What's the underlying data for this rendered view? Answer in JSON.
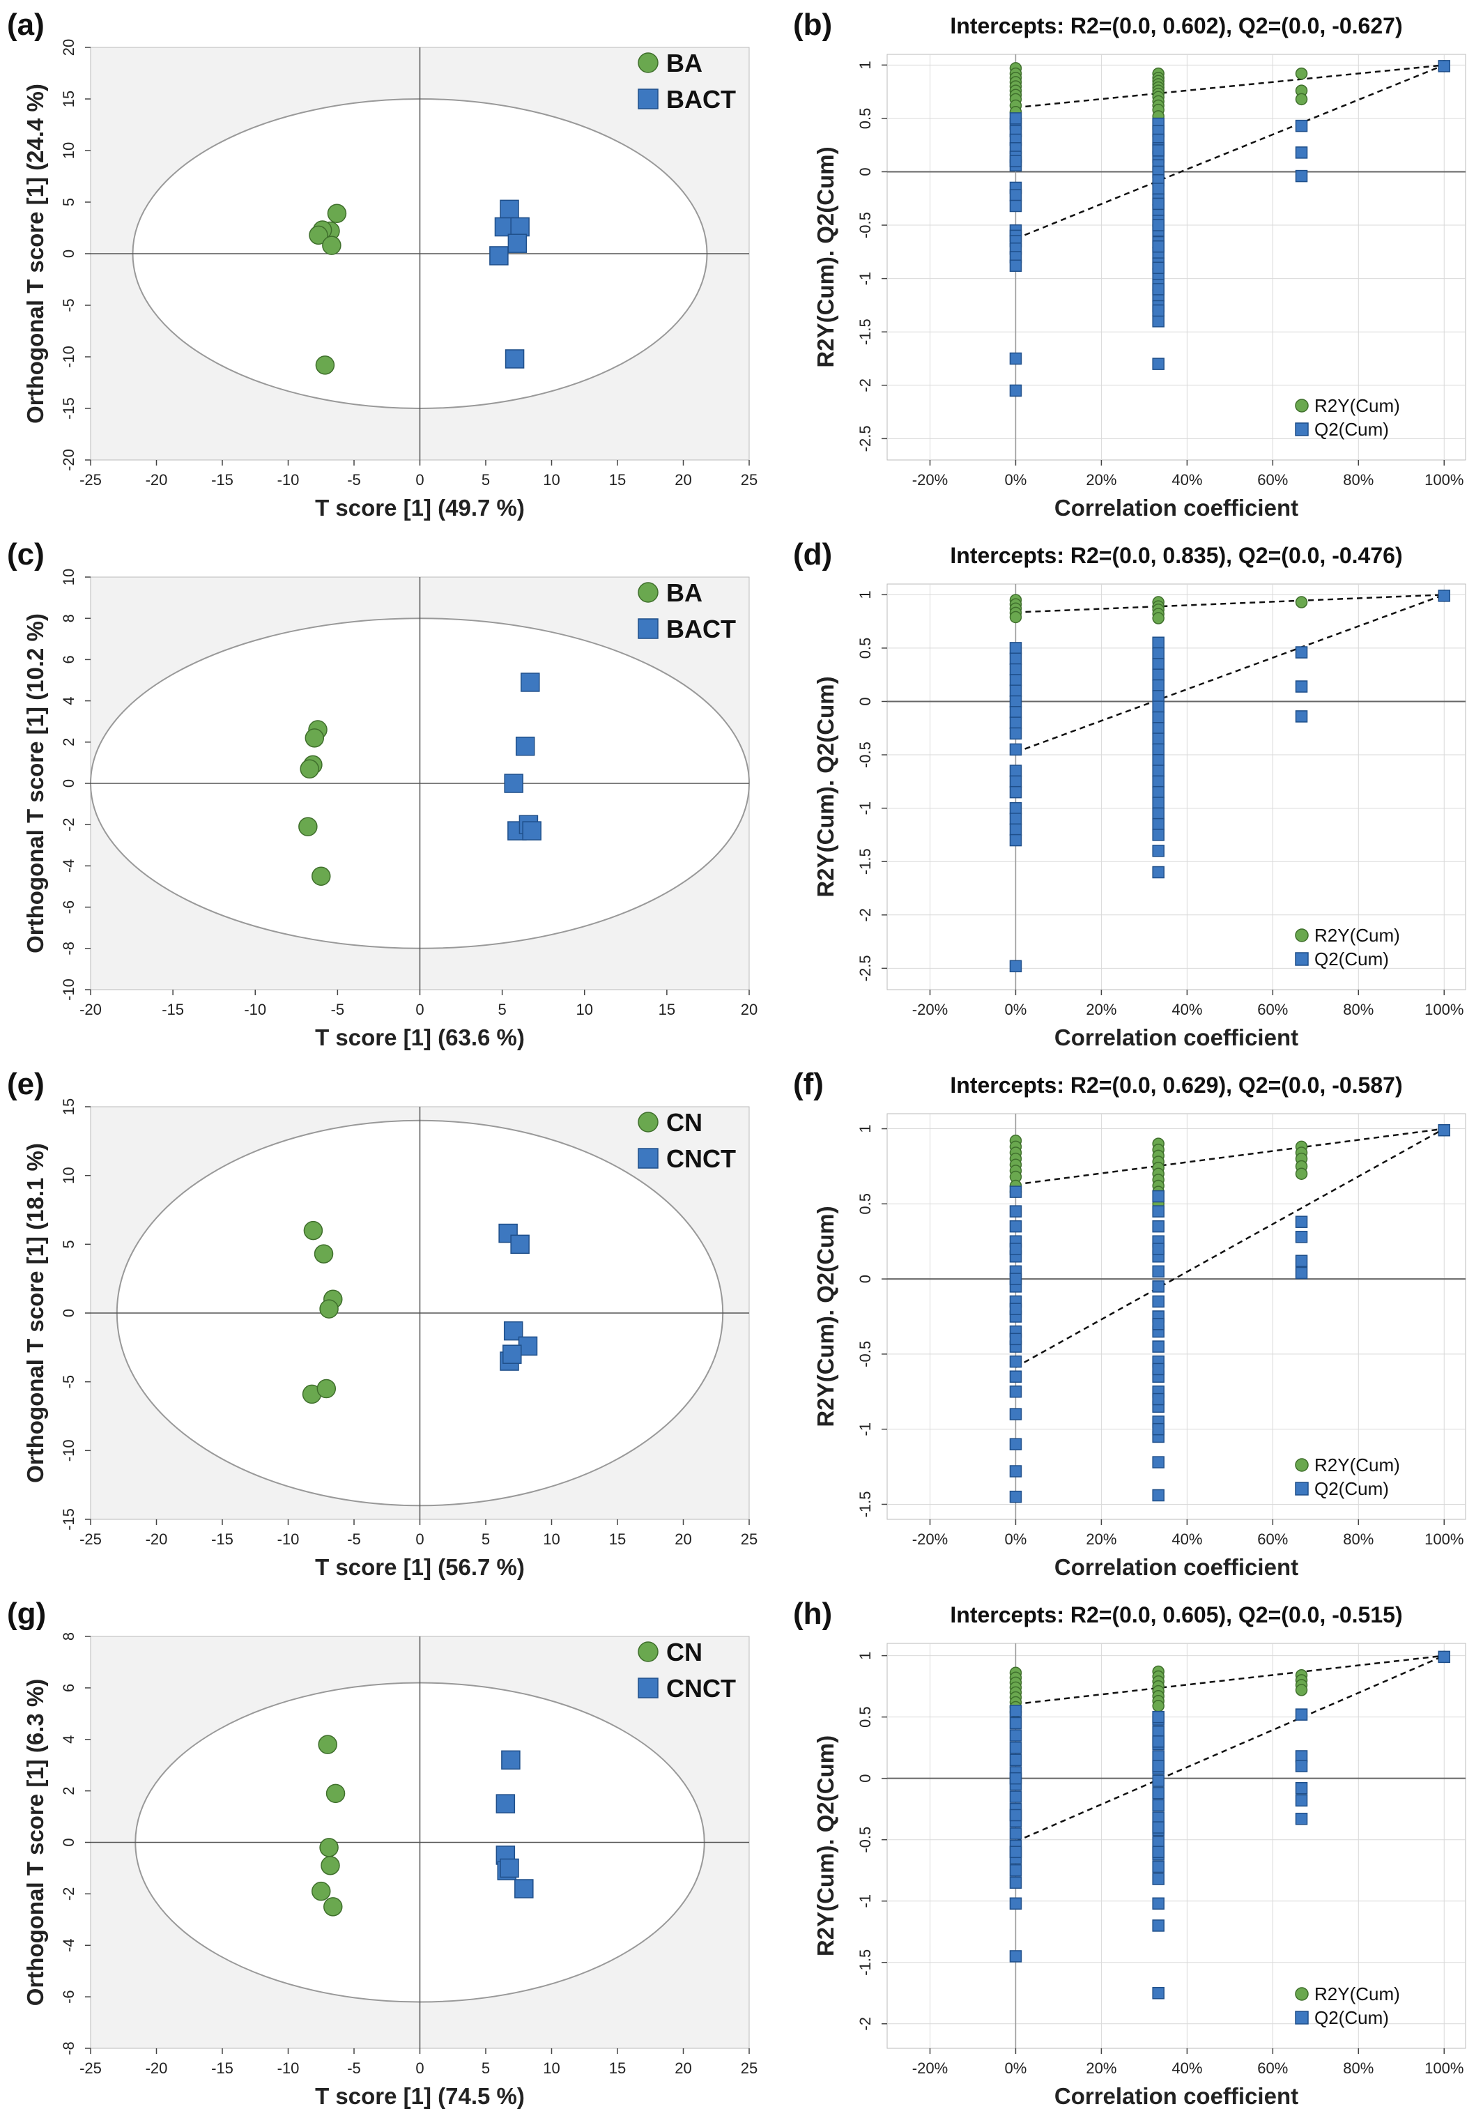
{
  "colors": {
    "green": "#6aa84f",
    "green_edge": "#3f6f2c",
    "blue": "#3d78c0",
    "blue_edge": "#1f4f8a",
    "shade": "#f2f2f2",
    "grid": "#d9d9d9",
    "line": "#888888"
  },
  "chart_data": [
    {
      "panel": "(a)",
      "type": "scatter",
      "title": "",
      "xlabel": "T score [1] (49.7 %)",
      "ylabel": "Orthogonal T score [1] (24.4 %)",
      "xlim": [
        -25,
        25
      ],
      "ylim": [
        -20,
        20
      ],
      "xticks": [
        "-25",
        "-20",
        "-15",
        "-10",
        "-5",
        "0",
        "5",
        "10",
        "15",
        "20",
        "25"
      ],
      "yticks": [
        "20",
        "15",
        "10",
        "5",
        "0",
        "-5",
        "-10",
        "-15",
        "-20"
      ],
      "ellipse": {
        "rx": 21.8,
        "ry": 15
      },
      "series": [
        {
          "name": "BA",
          "marker": "circle",
          "x": [
            -6.3,
            -6.8,
            -7.4,
            -7.7,
            -6.7,
            -7.2
          ],
          "y": [
            3.9,
            2.2,
            2.3,
            1.8,
            0.8,
            -10.8
          ]
        },
        {
          "name": "BACT",
          "marker": "square",
          "x": [
            6.8,
            6.4,
            7.6,
            7.4,
            6.0,
            7.2
          ],
          "y": [
            4.3,
            2.6,
            2.6,
            1.0,
            -0.2,
            -10.2
          ]
        }
      ]
    },
    {
      "panel": "(b)",
      "type": "scatter",
      "title": "Intercepts: R2=(0.0, 0.602), Q2=(0.0, -0.627)",
      "xlabel": "Correlation coefficient",
      "ylabel": "R2Y(Cum). Q2(Cum)",
      "xlim": [
        -0.3,
        1.05
      ],
      "ylim": [
        -2.7,
        1.1
      ],
      "xticks": [
        "-20%",
        "0%",
        "20%",
        "40%",
        "60%",
        "80%",
        "100%"
      ],
      "yticks": [
        "1",
        "0.5",
        "0",
        "-0.5",
        "-1",
        "-1.5",
        "-2",
        "-2.5"
      ],
      "r2_line": [
        0.602,
        1.0
      ],
      "q2_line": [
        -0.627,
        1.0
      ],
      "series": [
        {
          "name": "R2Y(Cum)",
          "marker": "circle",
          "x": [
            0,
            0,
            0,
            0,
            0,
            0,
            0,
            0,
            0,
            0,
            0.333,
            0.333,
            0.333,
            0.333,
            0.333,
            0.333,
            0.333,
            0.333,
            0.333,
            0.333,
            0.333,
            0.333,
            0.667,
            0.667,
            0.667,
            1.0
          ],
          "y": [
            0.97,
            0.92,
            0.88,
            0.84,
            0.8,
            0.76,
            0.72,
            0.68,
            0.62,
            0.56,
            0.92,
            0.88,
            0.85,
            0.82,
            0.79,
            0.76,
            0.73,
            0.7,
            0.66,
            0.62,
            0.58,
            0.52,
            0.92,
            0.76,
            0.68,
            0.99
          ]
        },
        {
          "name": "Q2(Cum)",
          "marker": "square",
          "x": [
            0,
            0,
            0,
            0,
            0,
            0,
            0,
            0,
            0,
            0,
            0,
            0,
            0,
            0,
            0,
            0,
            0,
            0,
            0,
            0.333,
            0.333,
            0.333,
            0.333,
            0.333,
            0.333,
            0.333,
            0.333,
            0.333,
            0.333,
            0.333,
            0.333,
            0.333,
            0.333,
            0.333,
            0.333,
            0.333,
            0.333,
            0.333,
            0.333,
            0.333,
            0.333,
            0.333,
            0.333,
            0.333,
            0.333,
            0.333,
            0.333,
            0.333,
            0.667,
            0.667,
            0.667,
            1.0
          ],
          "y": [
            0.45,
            0.38,
            0.3,
            0.22,
            0.14,
            0.06,
            -0.15,
            -0.22,
            -0.32,
            -0.55,
            -0.6,
            -0.65,
            -0.72,
            -0.8,
            -0.88,
            -1.75,
            -2.05,
            0.5,
            0.1,
            0.45,
            0.38,
            0.3,
            0.22,
            0.14,
            0.06,
            0.0,
            -0.08,
            -0.16,
            -0.26,
            -0.36,
            -0.46,
            -0.55,
            -0.66,
            -0.76,
            -0.86,
            -0.96,
            -1.06,
            -1.16,
            -1.26,
            -1.4,
            -1.8,
            0.2,
            -0.3,
            -0.5,
            -0.7,
            -0.9,
            -1.1,
            -1.3,
            0.43,
            0.18,
            -0.04,
            0.99
          ]
        }
      ]
    },
    {
      "panel": "(c)",
      "type": "scatter",
      "title": "",
      "xlabel": "T score [1] (63.6 %)",
      "ylabel": "Orthogonal T score [1] (10.2 %)",
      "xlim": [
        -20,
        20
      ],
      "ylim": [
        -10,
        10
      ],
      "xticks": [
        "-20",
        "-15",
        "-10",
        "-5",
        "0",
        "5",
        "10",
        "15",
        "20"
      ],
      "yticks": [
        "10",
        "8",
        "6",
        "4",
        "2",
        "0",
        "-2",
        "-4",
        "-6",
        "-8",
        "-10"
      ],
      "ellipse": {
        "rx": 20,
        "ry": 8
      },
      "series": [
        {
          "name": "BA",
          "marker": "circle",
          "x": [
            -6.2,
            -6.4,
            -6.5,
            -6.7,
            -6.8,
            -6.0
          ],
          "y": [
            2.6,
            2.2,
            0.9,
            0.7,
            -2.1,
            -4.5
          ]
        },
        {
          "name": "BACT",
          "marker": "square",
          "x": [
            6.7,
            6.4,
            5.7,
            5.9,
            6.6,
            6.8
          ],
          "y": [
            4.9,
            1.8,
            0.0,
            -2.3,
            -2.0,
            -2.3
          ]
        }
      ]
    },
    {
      "panel": "(d)",
      "type": "scatter",
      "title": "Intercepts: R2=(0.0, 0.835), Q2=(0.0, -0.476)",
      "xlabel": "Correlation coefficient",
      "ylabel": "R2Y(Cum). Q2(Cum)",
      "xlim": [
        -0.3,
        1.05
      ],
      "ylim": [
        -2.7,
        1.1
      ],
      "xticks": [
        "-20%",
        "0%",
        "20%",
        "40%",
        "60%",
        "80%",
        "100%"
      ],
      "yticks": [
        "1",
        "0.5",
        "0",
        "-0.5",
        "-1",
        "-1.5",
        "-2",
        "-2.5"
      ],
      "r2_line": [
        0.835,
        1.0
      ],
      "q2_line": [
        -0.476,
        1.0
      ],
      "series": [
        {
          "name": "R2Y(Cum)",
          "marker": "circle",
          "x": [
            0,
            0,
            0,
            0,
            0,
            0.333,
            0.333,
            0.333,
            0.333,
            0.333,
            0.667,
            1.0
          ],
          "y": [
            0.95,
            0.91,
            0.87,
            0.83,
            0.79,
            0.93,
            0.89,
            0.86,
            0.82,
            0.78,
            0.93,
            0.99
          ]
        },
        {
          "name": "Q2(Cum)",
          "marker": "square",
          "x": [
            0,
            0,
            0,
            0,
            0,
            0,
            0,
            0,
            0,
            0,
            0,
            0,
            0,
            0,
            0,
            0,
            0,
            0,
            0.333,
            0.333,
            0.333,
            0.333,
            0.333,
            0.333,
            0.333,
            0.333,
            0.333,
            0.333,
            0.333,
            0.333,
            0.333,
            0.333,
            0.333,
            0.333,
            0.333,
            0.333,
            0.333,
            0.333,
            0.333,
            0.667,
            0.667,
            0.667,
            1.0
          ],
          "y": [
            0.5,
            0.4,
            0.3,
            0.2,
            0.1,
            0.0,
            -0.1,
            -0.2,
            -0.3,
            -0.45,
            -0.65,
            -0.75,
            -0.85,
            -1.0,
            -1.1,
            -1.2,
            -1.3,
            -2.48,
            0.55,
            0.45,
            0.35,
            0.25,
            0.15,
            0.05,
            -0.05,
            -0.15,
            -0.25,
            -0.35,
            -0.45,
            -0.55,
            -0.65,
            -0.75,
            -0.85,
            -0.95,
            -1.05,
            -1.15,
            -1.25,
            -1.6,
            -1.4,
            0.46,
            0.14,
            -0.14,
            0.99
          ]
        }
      ]
    },
    {
      "panel": "(e)",
      "type": "scatter",
      "title": "",
      "xlabel": "T score [1] (56.7 %)",
      "ylabel": "Orthogonal T score [1] (18.1 %)",
      "xlim": [
        -25,
        25
      ],
      "ylim": [
        -15,
        15
      ],
      "xticks": [
        "-25",
        "-20",
        "-15",
        "-10",
        "-5",
        "0",
        "5",
        "10",
        "15",
        "20",
        "25"
      ],
      "yticks": [
        "15",
        "10",
        "5",
        "0",
        "-5",
        "-10",
        "-15"
      ],
      "ellipse": {
        "rx": 23,
        "ry": 14
      },
      "series": [
        {
          "name": "CN",
          "marker": "circle",
          "x": [
            -8.1,
            -7.3,
            -6.6,
            -6.9,
            -8.2,
            -7.1
          ],
          "y": [
            6.0,
            4.3,
            1.0,
            0.3,
            -5.9,
            -5.5
          ]
        },
        {
          "name": "CNCT",
          "marker": "square",
          "x": [
            6.7,
            7.6,
            7.1,
            8.2,
            6.8,
            7.0
          ],
          "y": [
            5.8,
            5.0,
            -1.3,
            -2.4,
            -3.5,
            -3.0
          ]
        }
      ]
    },
    {
      "panel": "(f)",
      "type": "scatter",
      "title": "Intercepts: R2=(0.0, 0.629), Q2=(0.0, -0.587)",
      "xlabel": "Correlation coefficient",
      "ylabel": "R2Y(Cum). Q2(Cum)",
      "xlim": [
        -0.3,
        1.05
      ],
      "ylim": [
        -1.6,
        1.1
      ],
      "xticks": [
        "-20%",
        "0%",
        "20%",
        "40%",
        "60%",
        "80%",
        "100%"
      ],
      "yticks": [
        "1",
        "0.5",
        "0",
        "-0.5",
        "-1",
        "-1.5"
      ],
      "r2_line": [
        0.629,
        1.0
      ],
      "q2_line": [
        -0.587,
        1.0
      ],
      "series": [
        {
          "name": "R2Y(Cum)",
          "marker": "circle",
          "x": [
            0,
            0,
            0,
            0,
            0,
            0,
            0,
            0,
            0,
            0.333,
            0.333,
            0.333,
            0.333,
            0.333,
            0.333,
            0.333,
            0.333,
            0.333,
            0.333,
            0.667,
            0.667,
            0.667,
            0.667,
            0.667,
            1.0
          ],
          "y": [
            0.92,
            0.88,
            0.84,
            0.8,
            0.76,
            0.72,
            0.68,
            0.62,
            0.58,
            0.9,
            0.86,
            0.82,
            0.78,
            0.74,
            0.7,
            0.66,
            0.62,
            0.58,
            0.5,
            0.88,
            0.84,
            0.8,
            0.75,
            0.7,
            0.99
          ]
        },
        {
          "name": "Q2(Cum)",
          "marker": "square",
          "x": [
            0,
            0,
            0,
            0,
            0,
            0,
            0,
            0,
            0,
            0,
            0,
            0,
            0,
            0,
            0,
            0,
            0,
            0,
            0,
            0,
            0,
            0,
            0.333,
            0.333,
            0.333,
            0.333,
            0.333,
            0.333,
            0.333,
            0.333,
            0.333,
            0.333,
            0.333,
            0.333,
            0.333,
            0.333,
            0.333,
            0.333,
            0.333,
            0.333,
            0.333,
            0.333,
            0.333,
            0.333,
            0.333,
            0.333,
            0.667,
            0.667,
            0.667,
            0.667,
            1.0
          ],
          "y": [
            0.45,
            0.35,
            0.25,
            0.15,
            0.05,
            -0.05,
            -0.15,
            -0.25,
            -0.35,
            -0.45,
            -0.55,
            -0.65,
            -0.75,
            -0.9,
            -1.1,
            -1.28,
            -1.45,
            0.58,
            0.2,
            0.0,
            -0.2,
            -0.4,
            0.55,
            0.45,
            0.35,
            0.25,
            0.15,
            0.05,
            -0.05,
            -0.15,
            -0.25,
            -0.35,
            -0.45,
            -0.55,
            -0.65,
            -0.75,
            -0.85,
            -0.95,
            -1.05,
            -1.22,
            -1.44,
            0.2,
            -0.3,
            -0.6,
            -0.8,
            -1.0,
            0.38,
            0.28,
            0.12,
            0.04,
            0.99
          ]
        }
      ]
    },
    {
      "panel": "(g)",
      "type": "scatter",
      "title": "",
      "xlabel": "T score [1] (74.5 %)",
      "ylabel": "Orthogonal T score [1] (6.3 %)",
      "xlim": [
        -25,
        25
      ],
      "ylim": [
        -8,
        8
      ],
      "xticks": [
        "-25",
        "-20",
        "-15",
        "-10",
        "-5",
        "0",
        "5",
        "10",
        "15",
        "20",
        "25"
      ],
      "yticks": [
        "8",
        "6",
        "4",
        "2",
        "0",
        "-2",
        "-4",
        "-6",
        "-8"
      ],
      "ellipse": {
        "rx": 21.6,
        "ry": 6.2
      },
      "series": [
        {
          "name": "CN",
          "marker": "circle",
          "x": [
            -7.0,
            -6.4,
            -6.9,
            -6.8,
            -7.5,
            -6.6
          ],
          "y": [
            3.8,
            1.9,
            -0.2,
            -0.9,
            -1.9,
            -2.5
          ]
        },
        {
          "name": "CNCT",
          "marker": "square",
          "x": [
            6.9,
            6.5,
            6.5,
            6.6,
            7.9,
            6.8
          ],
          "y": [
            3.2,
            1.5,
            -0.5,
            -1.1,
            -1.8,
            -1.0
          ]
        }
      ]
    },
    {
      "panel": "(h)",
      "type": "scatter",
      "title": "Intercepts: R2=(0.0, 0.605), Q2=(0.0, -0.515)",
      "xlabel": "Correlation coefficient",
      "ylabel": "R2Y(Cum). Q2(Cum)",
      "xlim": [
        -0.3,
        1.05
      ],
      "ylim": [
        -2.2,
        1.1
      ],
      "xticks": [
        "-20%",
        "0%",
        "20%",
        "40%",
        "60%",
        "80%",
        "100%"
      ],
      "yticks": [
        "1",
        "0.5",
        "0",
        "-0.5",
        "-1",
        "-1.5",
        "-2"
      ],
      "r2_line": [
        0.605,
        1.0
      ],
      "q2_line": [
        -0.515,
        1.0
      ],
      "series": [
        {
          "name": "R2Y(Cum)",
          "marker": "circle",
          "x": [
            0,
            0,
            0,
            0,
            0,
            0,
            0,
            0,
            0,
            0.333,
            0.333,
            0.333,
            0.333,
            0.333,
            0.333,
            0.333,
            0.333,
            0.667,
            0.667,
            0.667,
            0.667,
            1.0
          ],
          "y": [
            0.86,
            0.82,
            0.78,
            0.74,
            0.7,
            0.66,
            0.62,
            0.58,
            0.54,
            0.87,
            0.83,
            0.79,
            0.75,
            0.71,
            0.67,
            0.63,
            0.59,
            0.84,
            0.8,
            0.76,
            0.72,
            0.99
          ]
        },
        {
          "name": "Q2(Cum)",
          "marker": "square",
          "x": [
            0,
            0,
            0,
            0,
            0,
            0,
            0,
            0,
            0,
            0,
            0,
            0,
            0,
            0,
            0,
            0,
            0,
            0,
            0,
            0,
            0.333,
            0.333,
            0.333,
            0.333,
            0.333,
            0.333,
            0.333,
            0.333,
            0.333,
            0.333,
            0.333,
            0.333,
            0.333,
            0.333,
            0.333,
            0.333,
            0.333,
            0.333,
            0.333,
            0.333,
            0.333,
            0.333,
            0.667,
            0.667,
            0.667,
            0.667,
            0.667,
            0.667,
            1.0
          ],
          "y": [
            0.45,
            0.35,
            0.25,
            0.15,
            0.05,
            -0.05,
            -0.15,
            -0.25,
            -0.35,
            -0.45,
            -0.55,
            -0.65,
            -0.75,
            -0.85,
            -1.02,
            -1.45,
            0.0,
            -0.3,
            -0.6,
            0.55,
            0.48,
            0.38,
            0.28,
            0.18,
            0.08,
            -0.02,
            -0.12,
            -0.22,
            -0.32,
            -0.42,
            -0.52,
            -0.62,
            -0.72,
            -0.82,
            -1.02,
            -1.2,
            -1.75,
            0.1,
            -0.4,
            -0.6,
            0.3,
            0.5,
            0.52,
            0.18,
            0.1,
            -0.08,
            -0.18,
            -0.33,
            0.99
          ]
        }
      ]
    }
  ]
}
